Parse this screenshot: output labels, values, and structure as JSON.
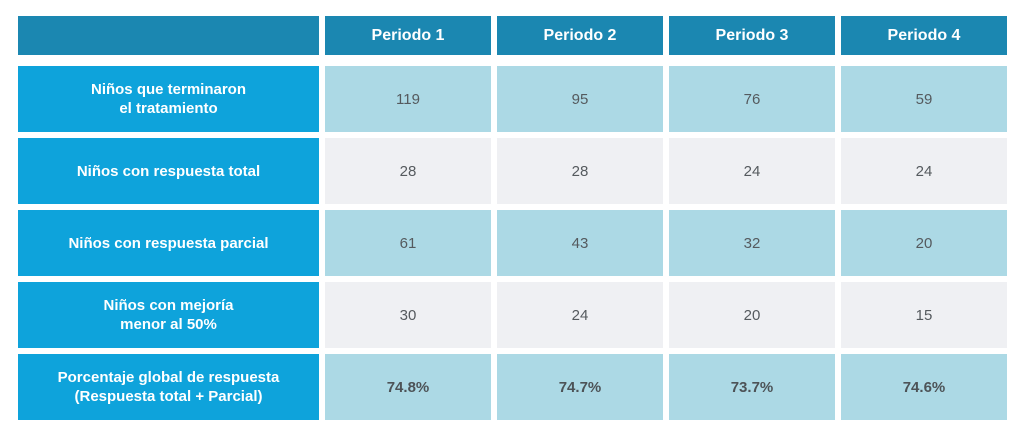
{
  "table": {
    "columns": [
      "Periodo 1",
      "Periodo 2",
      "Periodo 3",
      "Periodo 4"
    ],
    "rows": [
      {
        "label": "Niños que terminaron\nel tratamiento",
        "values": [
          "119",
          "95",
          "76",
          "59"
        ]
      },
      {
        "label": "Niños con respuesta total",
        "values": [
          "28",
          "28",
          "24",
          "24"
        ]
      },
      {
        "label": "Niños con respuesta parcial",
        "values": [
          "61",
          "43",
          "32",
          "20"
        ]
      },
      {
        "label": "Niños con mejoría\nmenor al 50%",
        "values": [
          "30",
          "24",
          "20",
          "15"
        ]
      },
      {
        "label": "Porcentaje global de respuesta\n(Respuesta total + Parcial)",
        "values": [
          "74.8%",
          "74.7%",
          "73.7%",
          "74.6%"
        ]
      }
    ]
  },
  "colors": {
    "header_bg": "#1b87b1",
    "row_label_bg": "#0ea3db",
    "cell_blue": "#acd9e5",
    "cell_gray": "#eff0f3"
  }
}
